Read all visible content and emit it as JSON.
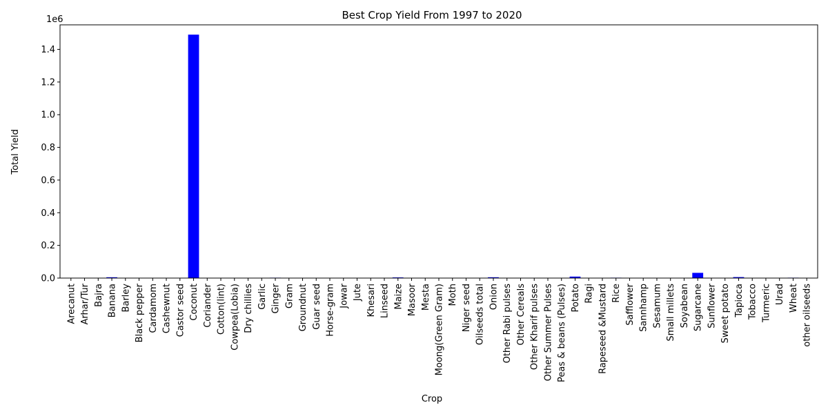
{
  "chart_data": {
    "type": "bar",
    "title": "Best Crop Yield From 1997 to 2020",
    "xlabel": "Crop",
    "ylabel": "Total Yield",
    "y_scale_label": "1e6",
    "ylim": [
      0,
      1550000
    ],
    "yticks": [
      0,
      200000,
      400000,
      600000,
      800000,
      1000000,
      1200000,
      1400000
    ],
    "ytick_labels": [
      "0.0",
      "0.2",
      "0.4",
      "0.6",
      "0.8",
      "1.0",
      "1.2",
      "1.4"
    ],
    "bar_color": "#0000ff",
    "grid": false,
    "legend": false,
    "categories": [
      "Arecanut",
      "Arhar/Tur",
      "Bajra",
      "Banana",
      "Barley",
      "Black pepper",
      "Cardamom",
      "Cashewnut",
      "Castor seed",
      "Coconut",
      "Coriander",
      "Cotton(lint)",
      "Cowpea(Lobia)",
      "Dry chillies",
      "Garlic",
      "Ginger",
      "Gram",
      "Groundnut",
      "Guar seed",
      "Horse-gram",
      "Jowar",
      "Jute",
      "Khesari",
      "Linseed",
      "Maize",
      "Masoor",
      "Mesta",
      "Moong(Green Gram)",
      "Moth",
      "Niger seed",
      "Oilseeds total",
      "Onion",
      "Other  Rabi pulses",
      "Other Cereals",
      "Other Kharif pulses",
      "Other Summer Pulses",
      "Peas & beans (Pulses)",
      "Potato",
      "Ragi",
      "Rapeseed &Mustard",
      "Rice",
      "Safflower",
      "Sannhamp",
      "Sesamum",
      "Small millets",
      "Soyabean",
      "Sugarcane",
      "Sunflower",
      "Sweet potato",
      "Tapioca",
      "Tobacco",
      "Turmeric",
      "Urad",
      "Wheat",
      "other oilseeds"
    ],
    "values": [
      1500,
      500,
      800,
      5000,
      1500,
      300,
      100,
      400,
      1000,
      1490000,
      700,
      1200,
      800,
      1200,
      2000,
      2500,
      700,
      1800,
      1000,
      500,
      700,
      1500,
      500,
      400,
      4000,
      600,
      1000,
      500,
      300,
      400,
      1500,
      5000,
      600,
      1000,
      500,
      600,
      800,
      9000,
      2000,
      1200,
      2500,
      400,
      700,
      400,
      600,
      1100,
      32000,
      800,
      1500,
      6000,
      1500,
      2000,
      500,
      2500,
      1000
    ]
  }
}
